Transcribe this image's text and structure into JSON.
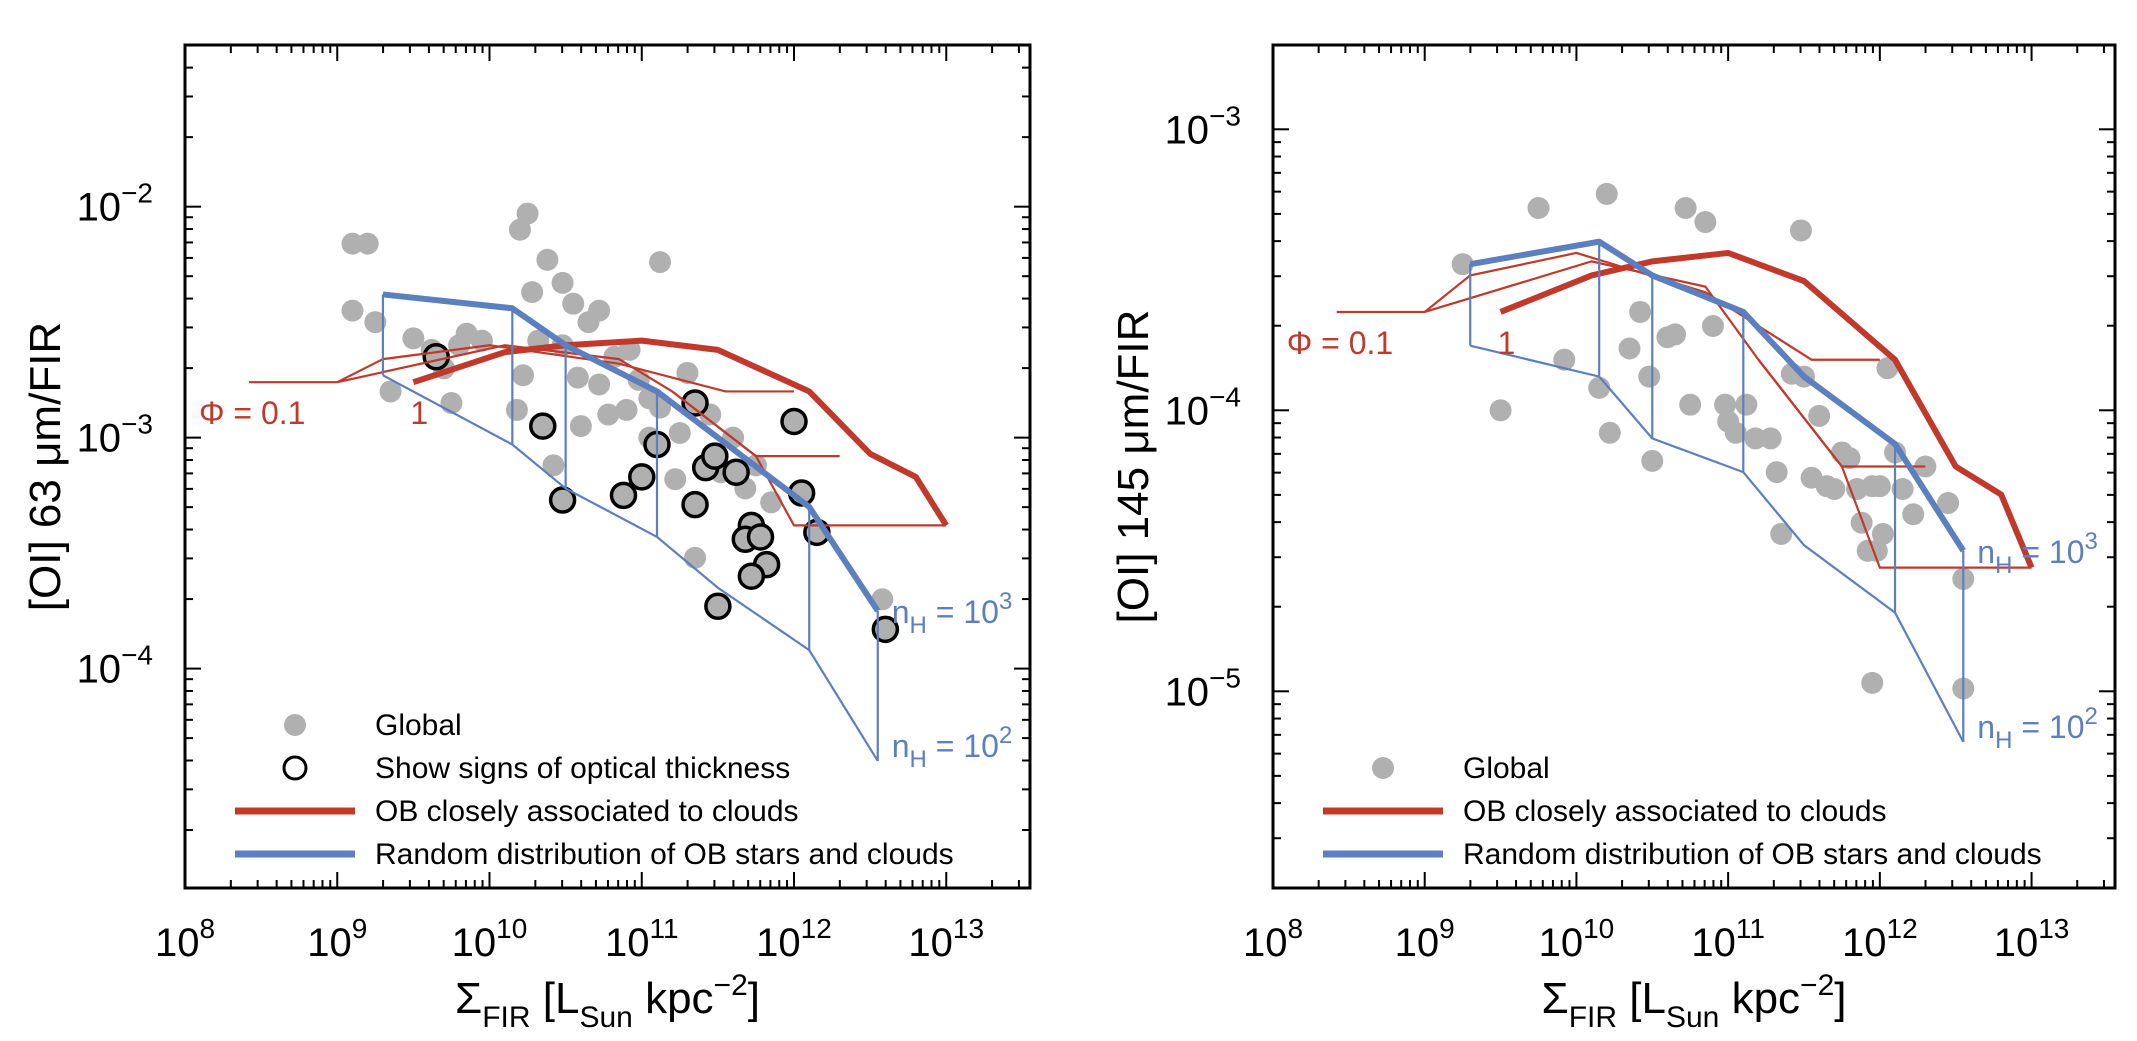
{
  "colors": {
    "red": "#c0392b",
    "blue": "#5b7fbf",
    "grey": "#b0b0b0",
    "axis": "#000000"
  },
  "chart_data": [
    {
      "type": "scatter",
      "xlabel_main": "Σ",
      "xlabel_sub1": "FIR",
      "xlabel_mid": " [L",
      "xlabel_sub2": "Sun",
      "xlabel_end": " kpc",
      "xlabel_sup": "−2",
      "xlabel_close": "]",
      "ylabel": "[OI] 63 μm/FIR",
      "xlog_range": [
        8,
        13.55
      ],
      "ylog_range": [
        -4.95,
        -1.3
      ],
      "xtick_exps": [
        "8",
        "9",
        "10",
        "11",
        "12",
        "13"
      ],
      "ytick_exps": [
        "−2",
        "−3",
        "−4"
      ],
      "ytick_vals": [
        -2,
        -3,
        -4
      ],
      "annot_phi": "Φ = 0.1",
      "annot_one": "1",
      "annot_nh3_base": "n",
      "annot_nh3_sub": "H",
      "annot_nh3_eq": " = 10",
      "annot_nh3_sup": "3",
      "annot_nh2_base": "n",
      "annot_nh2_sub": "H",
      "annot_nh2_eq": " = 10",
      "annot_nh2_sup": "2",
      "legend": [
        {
          "kind": "grey-dot",
          "label": "Global"
        },
        {
          "kind": "open-circle",
          "label": "Show signs of optical thickness"
        },
        {
          "kind": "red-line",
          "label": "OB closely associated to clouds"
        },
        {
          "kind": "blue-line",
          "label": "Random distribution of OB stars and clouds"
        }
      ],
      "global_points": [
        [
          9.1,
          -2.16
        ],
        [
          9.2,
          -2.16
        ],
        [
          9.1,
          -2.45
        ],
        [
          9.25,
          -2.5
        ],
        [
          9.5,
          -2.57
        ],
        [
          9.62,
          -2.62
        ],
        [
          9.75,
          -2.85
        ],
        [
          9.7,
          -2.7
        ],
        [
          9.85,
          -2.55
        ],
        [
          9.8,
          -2.6
        ],
        [
          9.95,
          -2.58
        ],
        [
          10.2,
          -2.1
        ],
        [
          10.25,
          -2.03
        ],
        [
          10.38,
          -2.23
        ],
        [
          10.28,
          -2.37
        ],
        [
          10.48,
          -2.33
        ],
        [
          10.55,
          -2.42
        ],
        [
          10.65,
          -2.5
        ],
        [
          10.72,
          -2.45
        ],
        [
          10.82,
          -2.65
        ],
        [
          10.72,
          -2.77
        ],
        [
          10.78,
          -2.9
        ],
        [
          10.9,
          -2.88
        ],
        [
          10.92,
          -2.62
        ],
        [
          10.98,
          -2.75
        ],
        [
          11.05,
          -2.83
        ],
        [
          11.12,
          -2.24
        ],
        [
          11.12,
          -2.87
        ],
        [
          11.25,
          -2.98
        ],
        [
          11.3,
          -2.72
        ],
        [
          11.45,
          -2.9
        ],
        [
          11.6,
          -3.0
        ],
        [
          11.75,
          -3.12
        ],
        [
          11.85,
          -3.28
        ],
        [
          10.18,
          -2.88
        ],
        [
          10.22,
          -2.73
        ],
        [
          10.32,
          -2.58
        ],
        [
          10.48,
          -2.6
        ],
        [
          10.58,
          -2.74
        ],
        [
          10.42,
          -3.12
        ],
        [
          10.6,
          -2.95
        ],
        [
          11.05,
          -3.0
        ],
        [
          11.22,
          -3.18
        ],
        [
          11.52,
          -3.15
        ],
        [
          11.68,
          -3.22
        ],
        [
          11.35,
          -3.52
        ],
        [
          12.58,
          -3.7
        ],
        [
          9.35,
          -2.8
        ]
      ],
      "thick_points": [
        [
          9.65,
          -2.65
        ],
        [
          10.35,
          -2.95
        ],
        [
          10.48,
          -3.27
        ],
        [
          10.88,
          -3.25
        ],
        [
          11.0,
          -3.17
        ],
        [
          11.1,
          -3.03
        ],
        [
          11.35,
          -3.29
        ],
        [
          11.42,
          -3.13
        ],
        [
          11.35,
          -2.85
        ],
        [
          11.48,
          -3.08
        ],
        [
          11.62,
          -3.15
        ],
        [
          11.72,
          -3.38
        ],
        [
          11.68,
          -3.44
        ],
        [
          11.78,
          -3.43
        ],
        [
          11.82,
          -3.55
        ],
        [
          11.72,
          -3.6
        ],
        [
          11.5,
          -3.73
        ],
        [
          12.0,
          -2.93
        ],
        [
          12.05,
          -3.24
        ],
        [
          12.15,
          -3.41
        ],
        [
          12.6,
          -3.83
        ]
      ],
      "red_thin_1": [
        [
          8.42,
          -2.76
        ],
        [
          9.0,
          -2.76
        ],
        [
          9.3,
          -2.66
        ],
        [
          10.0,
          -2.6
        ],
        [
          10.85,
          -2.68
        ],
        [
          11.55,
          -2.8
        ],
        [
          12.0,
          -2.8
        ]
      ],
      "red_thin_2": [
        [
          9.0,
          -2.76
        ],
        [
          10.1,
          -2.6
        ],
        [
          10.85,
          -2.66
        ],
        [
          11.2,
          -2.8
        ],
        [
          11.75,
          -3.08
        ],
        [
          12.3,
          -3.08
        ]
      ],
      "red_thin_3": [
        [
          11.2,
          -2.8
        ],
        [
          11.75,
          -3.08
        ],
        [
          12.0,
          -3.38
        ],
        [
          13.0,
          -3.38
        ]
      ],
      "red_thick": [
        [
          9.5,
          -2.76
        ],
        [
          10.1,
          -2.63
        ],
        [
          10.5,
          -2.6
        ],
        [
          11.0,
          -2.58
        ],
        [
          11.5,
          -2.62
        ],
        [
          12.1,
          -2.8
        ],
        [
          12.5,
          -3.07
        ],
        [
          12.8,
          -3.17
        ],
        [
          13.0,
          -3.38
        ]
      ],
      "blue_thick": [
        [
          9.3,
          -2.38
        ],
        [
          10.15,
          -2.44
        ],
        [
          10.5,
          -2.6
        ],
        [
          11.1,
          -2.8
        ],
        [
          11.5,
          -3.0
        ],
        [
          12.1,
          -3.3
        ],
        [
          12.55,
          -3.75
        ]
      ],
      "blue_thin_lower": [
        [
          9.3,
          -2.73
        ],
        [
          10.15,
          -3.03
        ],
        [
          10.5,
          -3.22
        ],
        [
          11.1,
          -3.43
        ],
        [
          11.5,
          -3.65
        ],
        [
          12.1,
          -3.92
        ],
        [
          12.55,
          -4.4
        ]
      ],
      "blue_verticals": [
        [
          9.3,
          -2.38,
          -2.73
        ],
        [
          10.15,
          -2.44,
          -3.03
        ],
        [
          10.5,
          -2.6,
          -3.22
        ],
        [
          11.1,
          -2.8,
          -3.43
        ],
        [
          12.1,
          -3.3,
          -3.92
        ],
        [
          12.55,
          -3.75,
          -4.4
        ]
      ]
    },
    {
      "type": "scatter",
      "xlabel_main": "Σ",
      "xlabel_sub1": "FIR",
      "xlabel_mid": " [L",
      "xlabel_sub2": "Sun",
      "xlabel_end": " kpc",
      "xlabel_sup": "−2",
      "xlabel_close": "]",
      "ylabel": "[OI] 145 μm/FIR",
      "xlog_range": [
        8,
        13.55
      ],
      "ylog_range": [
        -5.7,
        -2.7
      ],
      "xtick_exps": [
        "8",
        "9",
        "10",
        "11",
        "12",
        "13"
      ],
      "ytick_exps": [
        "−3",
        "−4",
        "−5"
      ],
      "ytick_vals": [
        -3,
        -4,
        -5
      ],
      "annot_phi": "Φ = 0.1",
      "annot_one": "1",
      "annot_nh3_base": "n",
      "annot_nh3_sub": "H",
      "annot_nh3_eq": " = 10",
      "annot_nh3_sup": "3",
      "annot_nh2_base": "n",
      "annot_nh2_sub": "H",
      "annot_nh2_eq": " = 10",
      "annot_nh2_sup": "2",
      "legend": [
        {
          "kind": "grey-dot",
          "label": "Global"
        },
        {
          "kind": "red-line",
          "label": "OB closely associated to clouds"
        },
        {
          "kind": "blue-line",
          "label": "Random distribution of OB stars and clouds"
        }
      ],
      "global_points": [
        [
          9.25,
          -3.48
        ],
        [
          9.5,
          -4.0
        ],
        [
          9.75,
          -3.28
        ],
        [
          9.92,
          -3.82
        ],
        [
          10.15,
          -3.92
        ],
        [
          10.2,
          -3.23
        ],
        [
          10.22,
          -4.08
        ],
        [
          10.35,
          -3.78
        ],
        [
          10.42,
          -3.65
        ],
        [
          10.48,
          -3.88
        ],
        [
          10.5,
          -4.18
        ],
        [
          10.65,
          -3.73
        ],
        [
          10.6,
          -3.74
        ],
        [
          10.75,
          -3.98
        ],
        [
          10.72,
          -3.28
        ],
        [
          10.85,
          -3.33
        ],
        [
          10.9,
          -3.7
        ],
        [
          10.98,
          -3.98
        ],
        [
          11.0,
          -4.04
        ],
        [
          11.05,
          -4.08
        ],
        [
          11.12,
          -3.98
        ],
        [
          11.18,
          -4.1
        ],
        [
          11.28,
          -4.1
        ],
        [
          11.32,
          -4.22
        ],
        [
          11.35,
          -4.44
        ],
        [
          11.42,
          -3.87
        ],
        [
          11.48,
          -3.36
        ],
        [
          11.5,
          -3.88
        ],
        [
          11.55,
          -4.24
        ],
        [
          11.6,
          -4.02
        ],
        [
          11.65,
          -4.27
        ],
        [
          11.7,
          -4.28
        ],
        [
          11.75,
          -4.15
        ],
        [
          11.8,
          -4.17
        ],
        [
          11.85,
          -4.28
        ],
        [
          11.88,
          -4.4
        ],
        [
          11.95,
          -4.27
        ],
        [
          12.0,
          -4.27
        ],
        [
          12.02,
          -4.44
        ],
        [
          11.92,
          -4.5
        ],
        [
          11.98,
          -4.5
        ],
        [
          12.1,
          -4.15
        ],
        [
          12.05,
          -3.85
        ],
        [
          12.15,
          -4.28
        ],
        [
          12.22,
          -4.37
        ],
        [
          12.3,
          -4.2
        ],
        [
          12.45,
          -4.33
        ],
        [
          11.95,
          -4.97
        ],
        [
          12.55,
          -4.6
        ],
        [
          12.55,
          -4.99
        ]
      ],
      "red_thin_1": [
        [
          8.42,
          -3.65
        ],
        [
          9.0,
          -3.65
        ],
        [
          9.3,
          -3.52
        ],
        [
          10.0,
          -3.44
        ],
        [
          10.85,
          -3.58
        ],
        [
          11.55,
          -3.82
        ],
        [
          12.0,
          -3.82
        ]
      ],
      "red_thin_2": [
        [
          9.0,
          -3.65
        ],
        [
          10.1,
          -3.47
        ],
        [
          10.85,
          -3.56
        ],
        [
          11.2,
          -3.82
        ],
        [
          11.75,
          -4.2
        ],
        [
          12.3,
          -4.2
        ]
      ],
      "red_thin_3": [
        [
          11.2,
          -3.82
        ],
        [
          11.75,
          -4.2
        ],
        [
          12.0,
          -4.56
        ],
        [
          13.0,
          -4.56
        ]
      ],
      "red_thick": [
        [
          9.5,
          -3.65
        ],
        [
          10.1,
          -3.52
        ],
        [
          10.5,
          -3.47
        ],
        [
          11.0,
          -3.44
        ],
        [
          11.5,
          -3.54
        ],
        [
          12.1,
          -3.82
        ],
        [
          12.5,
          -4.2
        ],
        [
          12.8,
          -4.3
        ],
        [
          13.0,
          -4.56
        ]
      ],
      "blue_thick": [
        [
          9.3,
          -3.48
        ],
        [
          10.15,
          -3.4
        ],
        [
          10.5,
          -3.52
        ],
        [
          11.1,
          -3.65
        ],
        [
          11.5,
          -3.88
        ],
        [
          12.1,
          -4.12
        ],
        [
          12.55,
          -4.5
        ]
      ],
      "blue_thin_lower": [
        [
          9.3,
          -3.77
        ],
        [
          10.15,
          -3.88
        ],
        [
          10.5,
          -4.1
        ],
        [
          11.1,
          -4.22
        ],
        [
          11.5,
          -4.48
        ],
        [
          12.1,
          -4.72
        ],
        [
          12.55,
          -5.18
        ]
      ],
      "blue_verticals": [
        [
          9.3,
          -3.48,
          -3.77
        ],
        [
          10.15,
          -3.4,
          -3.88
        ],
        [
          10.5,
          -3.52,
          -4.1
        ],
        [
          11.1,
          -3.65,
          -4.22
        ],
        [
          12.1,
          -4.12,
          -4.72
        ],
        [
          12.55,
          -4.5,
          -5.18
        ]
      ]
    }
  ]
}
